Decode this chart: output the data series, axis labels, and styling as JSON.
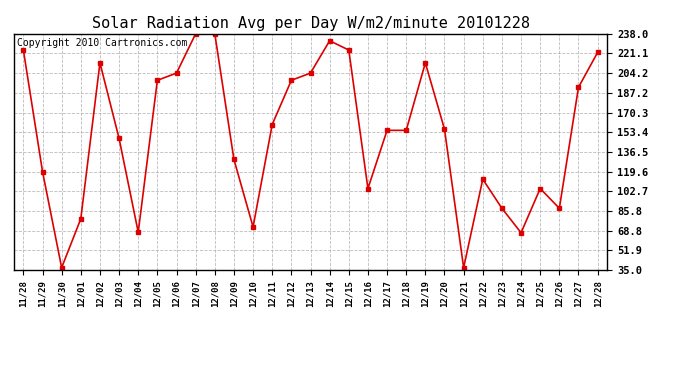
{
  "title": "Solar Radiation Avg per Day W/m2/minute 20101228",
  "copyright": "Copyright 2010 Cartronics.com",
  "labels": [
    "11/28",
    "11/29",
    "11/30",
    "12/01",
    "12/02",
    "12/03",
    "12/04",
    "12/05",
    "12/06",
    "12/07",
    "12/08",
    "12/09",
    "12/10",
    "12/11",
    "12/12",
    "12/13",
    "12/14",
    "12/15",
    "12/16",
    "12/17",
    "12/18",
    "12/19",
    "12/20",
    "12/21",
    "12/22",
    "12/23",
    "12/24",
    "12/25",
    "12/26",
    "12/27",
    "12/28"
  ],
  "values": [
    224.0,
    119.6,
    37.0,
    79.0,
    213.0,
    148.0,
    67.5,
    198.0,
    204.2,
    238.0,
    238.0,
    130.0,
    72.0,
    160.0,
    198.0,
    204.2,
    232.0,
    224.0,
    105.0,
    155.0,
    155.0,
    213.0,
    156.0,
    37.0,
    113.0,
    88.0,
    67.0,
    105.0,
    88.0,
    192.0,
    222.0
  ],
  "line_color": "#dd0000",
  "marker": "s",
  "marker_size": 2.5,
  "ylim": [
    35.0,
    238.0
  ],
  "yticks": [
    35.0,
    51.9,
    68.8,
    85.8,
    102.7,
    119.6,
    136.5,
    153.4,
    170.3,
    187.2,
    204.2,
    221.1,
    238.0
  ],
  "bg_color": "#ffffff",
  "grid_color": "#aaaaaa",
  "title_fontsize": 11,
  "copyright_fontsize": 7
}
